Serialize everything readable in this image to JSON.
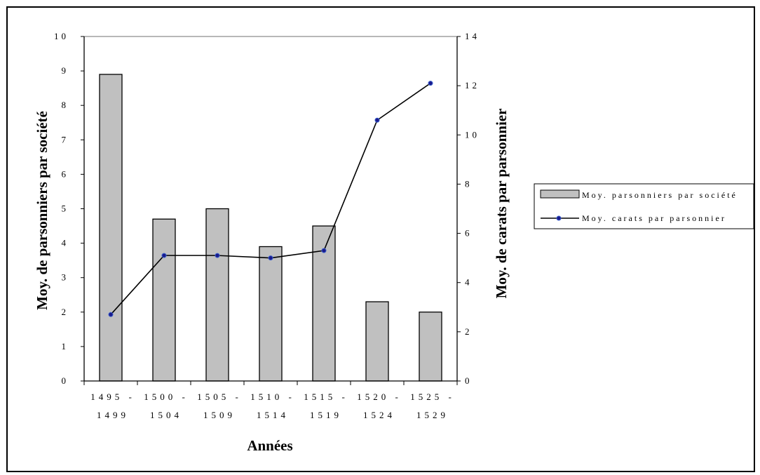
{
  "chart_data": {
    "type": "bar",
    "categories": [
      [
        "1495 -",
        "1499"
      ],
      [
        "1500 -",
        "1504"
      ],
      [
        "1505 -",
        "1509"
      ],
      [
        "1510 -",
        "1514"
      ],
      [
        "1515 -",
        "1519"
      ],
      [
        "1520 -",
        "1524"
      ],
      [
        "1525 -",
        "1529"
      ]
    ],
    "xlabel": "Années",
    "ylabel_left": "Moy. de parsonniers par société",
    "ylabel_right": "Moy. de carats par parsonnier",
    "ylim_left": [
      0,
      10
    ],
    "ylim_right": [
      0,
      14
    ],
    "yticks_left": [
      "0",
      "1",
      "2",
      "3",
      "4",
      "5",
      "6",
      "7",
      "8",
      "9",
      "10"
    ],
    "yticks_right": [
      "0",
      "2",
      "4",
      "6",
      "8",
      "10",
      "12",
      "14"
    ],
    "series": [
      {
        "name": "Moy. parsonniers par société",
        "kind": "bar",
        "axis": "left",
        "color": "#c0c0c0",
        "values": [
          8.9,
          4.7,
          5.0,
          3.9,
          4.5,
          2.3,
          2.0
        ]
      },
      {
        "name": "Moy. carats par parsonnier",
        "kind": "line",
        "axis": "right",
        "color": "#000000",
        "marker_color": "#1a1a8c",
        "values": [
          2.7,
          5.1,
          5.1,
          5.0,
          5.3,
          10.6,
          12.1
        ]
      }
    ],
    "grid": false,
    "legend": "right"
  }
}
